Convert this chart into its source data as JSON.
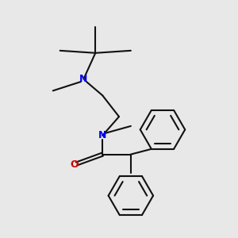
{
  "bg_color": "#e8e8e8",
  "line_color": "#111111",
  "N_color": "#0000ee",
  "O_color": "#cc0000",
  "line_width": 1.5,
  "fig_width": 3.0,
  "fig_height": 3.0,
  "dpi": 100,
  "xlim": [
    0,
    10
  ],
  "ylim": [
    0,
    10
  ]
}
